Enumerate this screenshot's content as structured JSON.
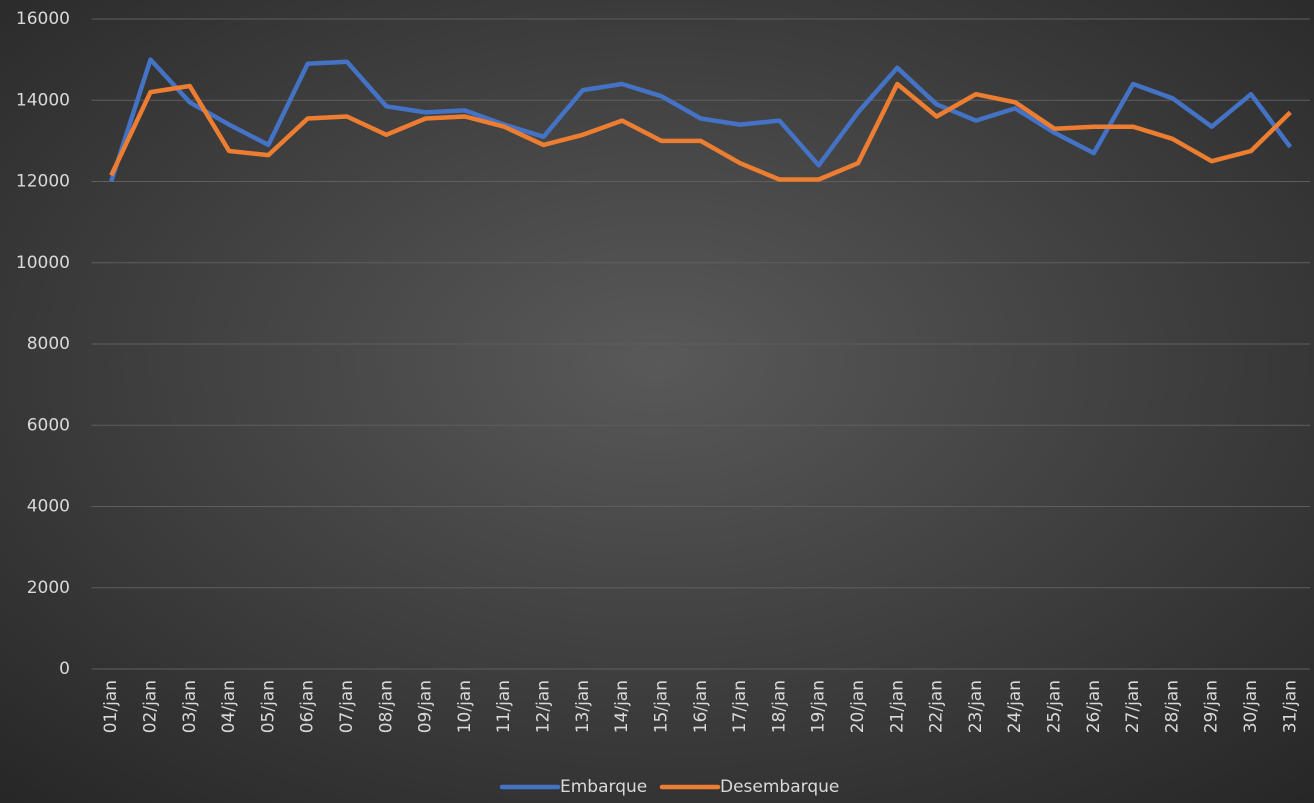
{
  "chart_data": {
    "type": "line",
    "categories": [
      "01/jan",
      "02/jan",
      "03/jan",
      "04/jan",
      "05/jan",
      "06/jan",
      "07/jan",
      "08/jan",
      "09/jan",
      "10/jan",
      "11/jan",
      "12/jan",
      "13/jan",
      "14/jan",
      "15/jan",
      "16/jan",
      "17/jan",
      "18/jan",
      "19/jan",
      "20/jan",
      "21/jan",
      "22/jan",
      "23/jan",
      "24/jan",
      "25/jan",
      "26/jan",
      "27/jan",
      "28/jan",
      "29/jan",
      "30/jan",
      "31/jan"
    ],
    "series": [
      {
        "name": "Embarque",
        "color": "#4472c4",
        "values": [
          12000,
          15000,
          13950,
          13400,
          12900,
          14900,
          14950,
          13850,
          13700,
          13750,
          13400,
          13100,
          14250,
          14400,
          14100,
          13550,
          13400,
          13500,
          12400,
          13700,
          14800,
          13900,
          13500,
          13800,
          13200,
          12700,
          14400,
          14050,
          13350,
          14150,
          12850
        ]
      },
      {
        "name": "Desembarque",
        "color": "#ed7d31",
        "values": [
          12150,
          14200,
          14350,
          12750,
          12650,
          13550,
          13600,
          13150,
          13550,
          13600,
          13350,
          12900,
          13150,
          13500,
          13000,
          13000,
          12450,
          12050,
          12050,
          12450,
          14400,
          13600,
          14150,
          13950,
          13300,
          13350,
          13350,
          13050,
          12500,
          12750,
          13700
        ]
      }
    ],
    "ylim": [
      0,
      16000
    ],
    "yticks": [
      0,
      2000,
      4000,
      6000,
      8000,
      10000,
      12000,
      14000,
      16000
    ],
    "grid": true,
    "legend": "bottom"
  }
}
